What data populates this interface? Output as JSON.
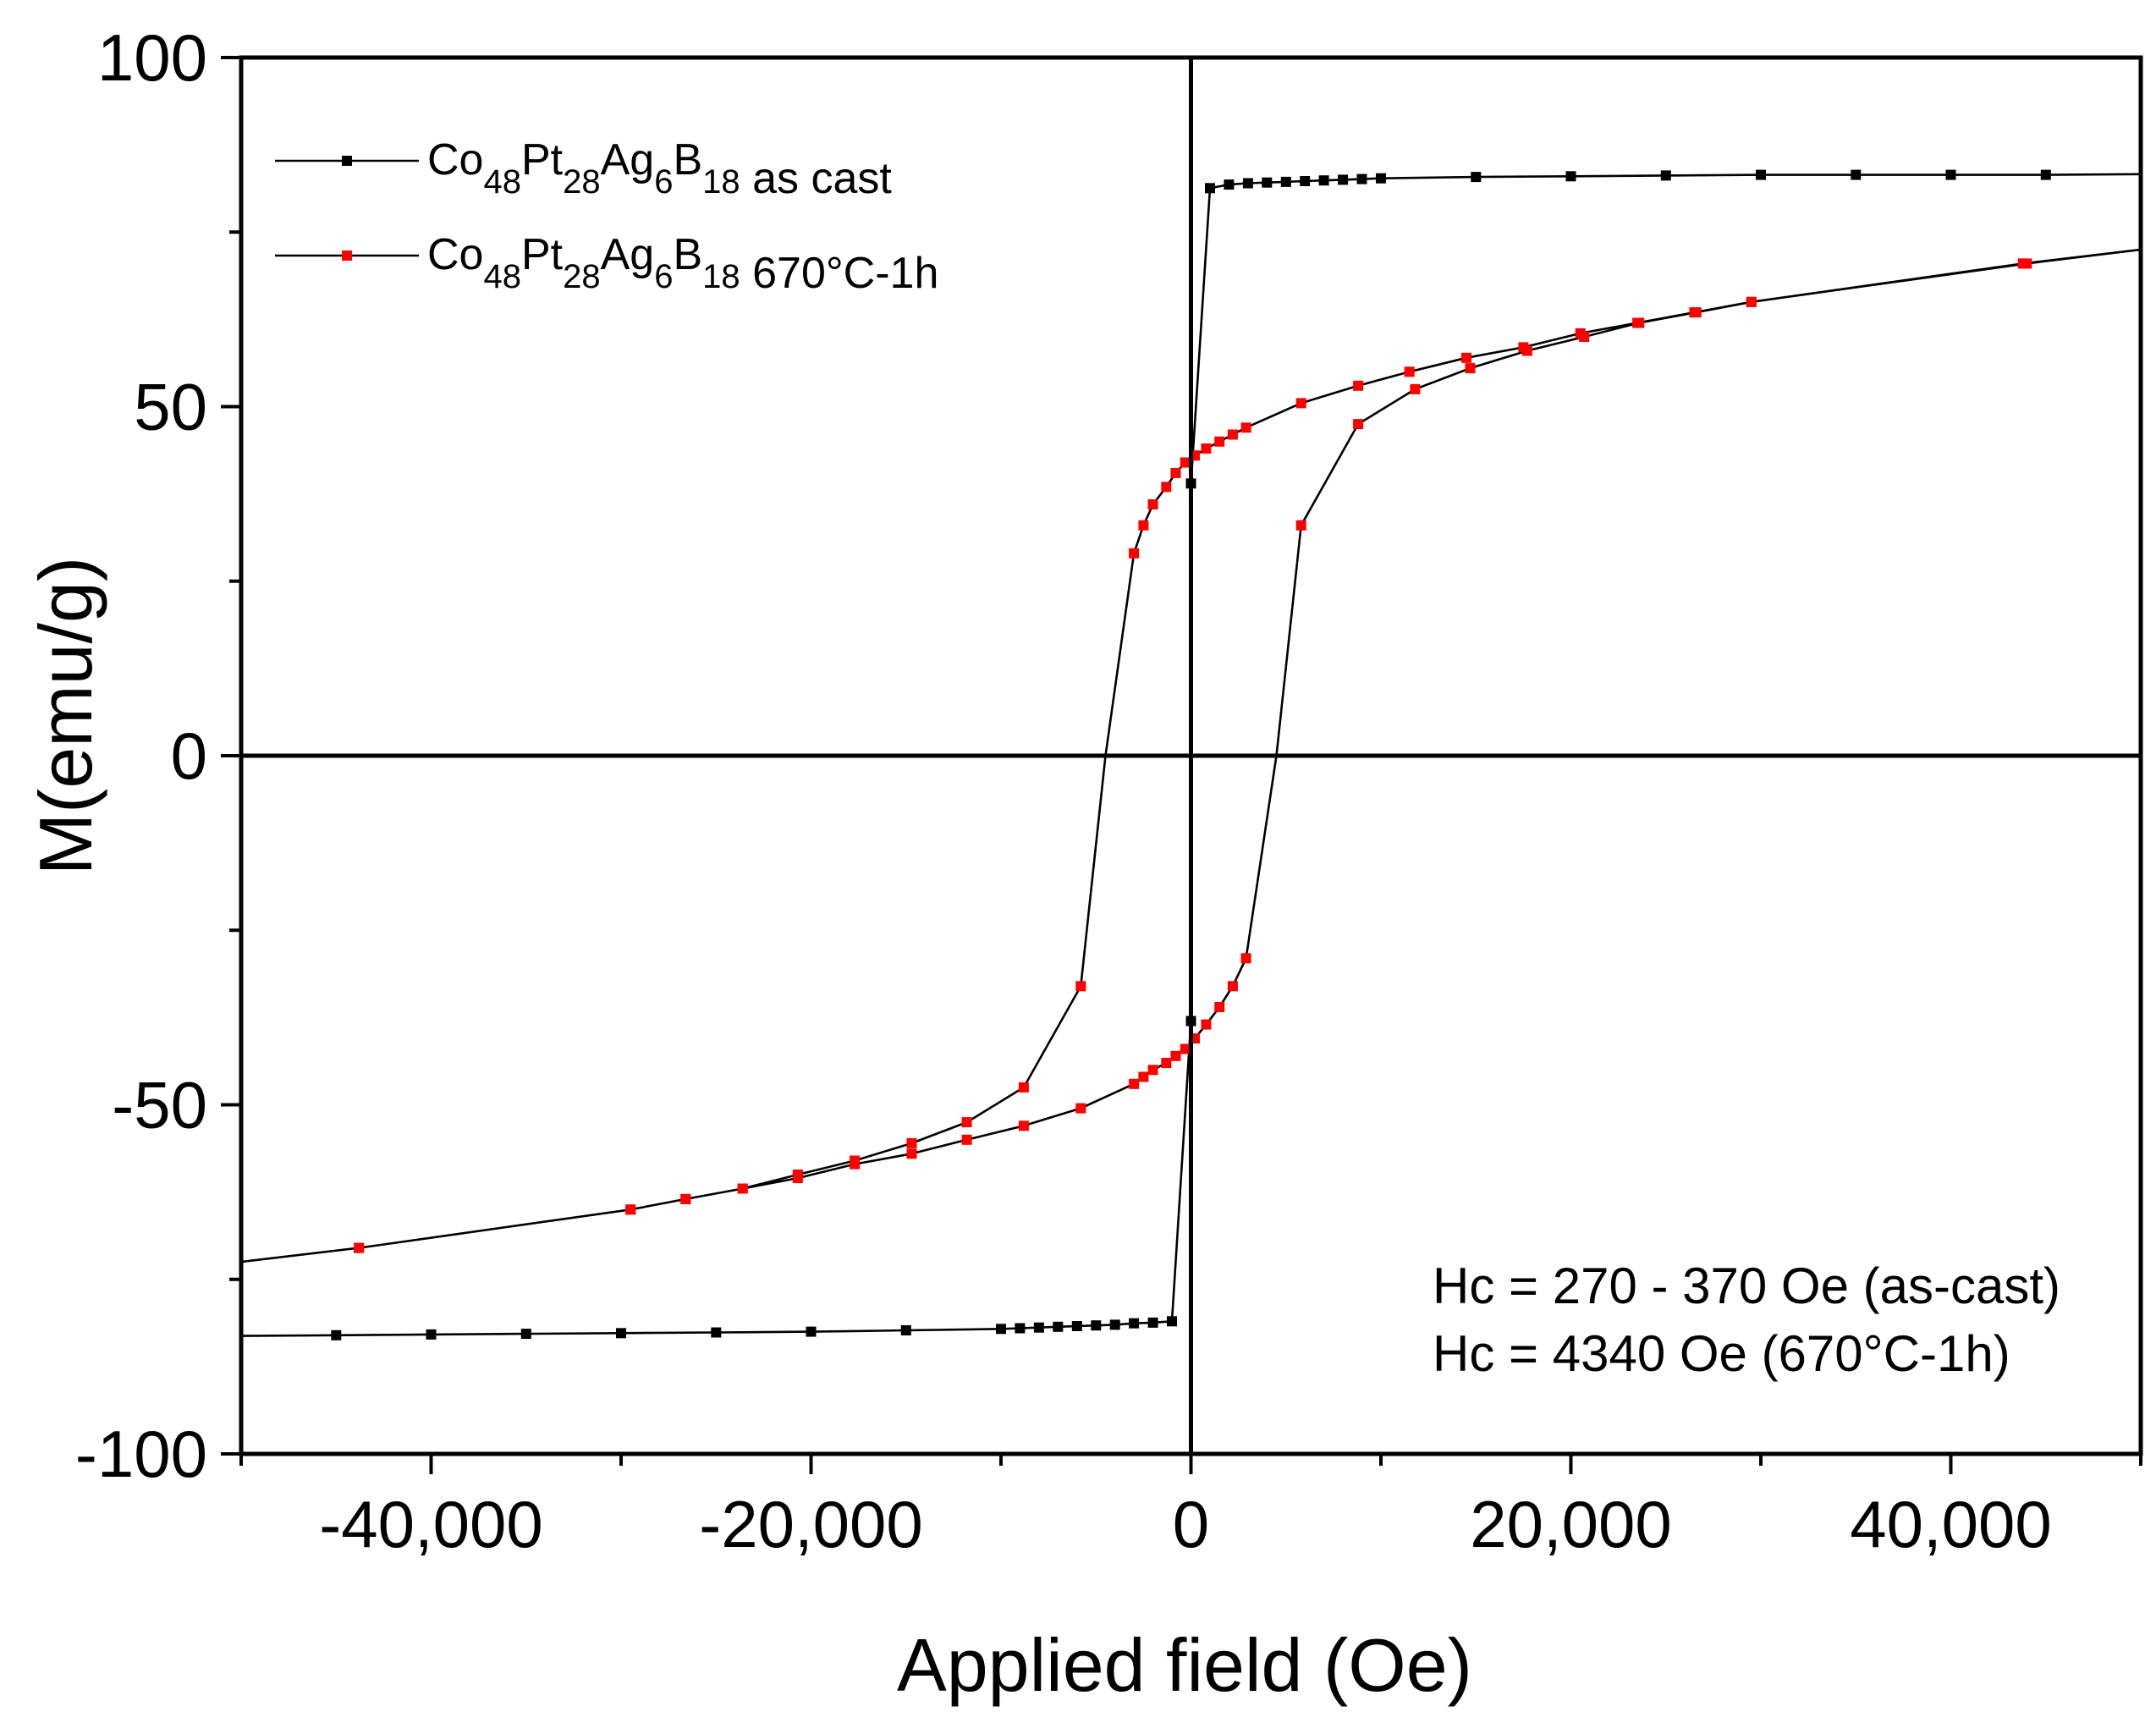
{
  "chart_data": {
    "type": "line",
    "title": "",
    "xlabel": "Applied field (Oe)",
    "ylabel": "M(emu/g)",
    "xlim": [
      -50000,
      50000
    ],
    "ylim": [
      -100,
      100
    ],
    "xticks": [
      -40000,
      -20000,
      0,
      20000,
      40000
    ],
    "xtick_labels": [
      "-40,000",
      "-20,000",
      "0",
      "20,000",
      "40,000"
    ],
    "yticks": [
      -100,
      -50,
      0,
      50,
      100
    ],
    "ytick_labels": [
      "-100",
      "-50",
      "0",
      "50",
      "100"
    ],
    "grid": false,
    "zero_lines": true,
    "legend_position": "top-left",
    "series": [
      {
        "name": "Co48Pt28Ag6B18 as cast",
        "legend": {
          "base": "Co",
          "parts": [
            [
              "48",
              "Pt"
            ],
            [
              "28",
              "Ag"
            ],
            [
              "6",
              "B"
            ],
            [
              "18",
              ""
            ]
          ],
          "suffix": "  as cast"
        },
        "color": "#000000",
        "marker": "square",
        "x": [
          -50000,
          -45000,
          -40000,
          -35000,
          -30000,
          -25000,
          -20000,
          -15000,
          -10000,
          -9000,
          -8000,
          -7000,
          -6000,
          -5000,
          -4000,
          -3000,
          -2000,
          -1000,
          0,
          0,
          1000,
          2000,
          3000,
          4000,
          5000,
          6000,
          7000,
          8000,
          9000,
          10000,
          15000,
          20000,
          25000,
          30000,
          35000,
          40000,
          45000,
          50000
        ],
        "y": [
          -83.1,
          -83.0,
          -82.9,
          -82.8,
          -82.7,
          -82.6,
          -82.5,
          -82.3,
          -82.1,
          -82.0,
          -81.9,
          -81.8,
          -81.7,
          -81.6,
          -81.5,
          -81.3,
          -81.2,
          -81.0,
          -38,
          39,
          81.3,
          81.8,
          82.0,
          82.1,
          82.2,
          82.3,
          82.4,
          82.5,
          82.6,
          82.7,
          82.9,
          83.0,
          83.1,
          83.2,
          83.2,
          83.2,
          83.2,
          83.3
        ],
        "marker_indices": [
          1,
          2,
          3,
          4,
          5,
          6,
          7,
          8,
          9,
          10,
          11,
          12,
          13,
          14,
          15,
          16,
          17,
          18,
          19,
          20,
          21,
          22,
          23,
          24,
          25,
          26,
          27,
          28,
          29,
          30,
          31,
          32,
          33,
          34,
          35,
          36
        ]
      },
      {
        "name": "Co48Pt28Ag6B18 670°C-1h",
        "legend": {
          "base": "Co",
          "parts": [
            [
              "48",
              "Pt"
            ],
            [
              "28",
              "Ag"
            ],
            [
              "6",
              "B"
            ],
            [
              "18",
              ""
            ]
          ],
          "suffix": " 670°C-1h"
        },
        "color": "#ff0000",
        "marker": "square",
        "x": [
          50000,
          44000,
          29500,
          26500,
          23500,
          20500,
          17500,
          14500,
          11500,
          8800,
          5800,
          2900,
          2200,
          1500,
          800,
          200,
          -300,
          -800,
          -1300,
          -2000,
          -2500,
          -3000,
          -4500,
          -5800,
          -8800,
          -11800,
          -14700,
          -17700,
          -20700,
          -23600,
          -26600,
          -29500,
          -43800,
          -50000,
          -43800,
          -29500,
          -26600,
          -23600,
          -20700,
          -17700,
          -14700,
          -11800,
          -8800,
          -5800,
          -3000,
          -2500,
          -2000,
          -1300,
          -800,
          -300,
          200,
          800,
          1500,
          2200,
          2900,
          4500,
          5800,
          8800,
          11800,
          14700,
          17700,
          20700,
          23600,
          26600,
          29500,
          43800,
          50000
        ],
        "y": [
          72.5,
          70.5,
          65,
          63.5,
          62,
          60.5,
          58.5,
          57,
          55,
          53,
          50.5,
          47,
          46,
          45,
          44,
          43,
          42,
          40.5,
          38.5,
          36,
          33,
          29,
          0,
          -33,
          -47.5,
          -52.5,
          -55.5,
          -58,
          -60,
          -62,
          -63.5,
          -65,
          -70.5,
          -72.5,
          -70.5,
          -65,
          -63.5,
          -62,
          -60.5,
          -58.5,
          -57,
          -55,
          -53,
          -50.5,
          -47,
          -46,
          -45,
          -44,
          -43,
          -42,
          -40.5,
          -38.5,
          -36,
          -33,
          -29,
          0,
          33,
          47.5,
          52.5,
          55.5,
          58,
          60,
          62,
          63.5,
          65,
          70.5,
          72.5
        ],
        "marker_indices": [
          1,
          2,
          3,
          4,
          5,
          6,
          7,
          8,
          9,
          10,
          11,
          12,
          13,
          14,
          15,
          16,
          17,
          18,
          19,
          20,
          21,
          23,
          24,
          25,
          26,
          27,
          28,
          29,
          30,
          31,
          32,
          34,
          35,
          36,
          37,
          38,
          39,
          40,
          41,
          42,
          43,
          44,
          45,
          46,
          47,
          48,
          49,
          50,
          51,
          52,
          53,
          54,
          56,
          57,
          58,
          59,
          60,
          61,
          62,
          63,
          64,
          65
        ]
      }
    ],
    "annotations": [
      "Hc = 270 - 370 Oe (as-cast)",
      "Hc = 4340 Oe (670°C-1h)"
    ]
  }
}
